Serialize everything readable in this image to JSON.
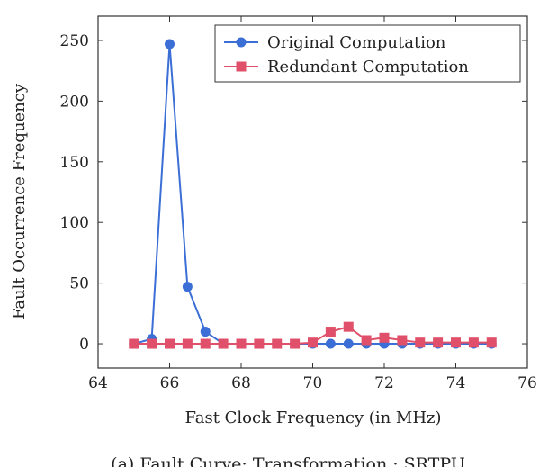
{
  "chart_data": {
    "type": "line",
    "xlabel": "Fast Clock Frequency (in MHz)",
    "ylabel": "Fault Occurrence Frequency",
    "xlim": [
      64,
      76
    ],
    "ylim": [
      -20,
      270
    ],
    "x_ticks": [
      64,
      66,
      68,
      70,
      72,
      74,
      76
    ],
    "y_ticks": [
      0,
      50,
      100,
      150,
      200,
      250
    ],
    "grid": false,
    "legend_position": "top-right",
    "series": [
      {
        "name": "Original Computation",
        "color": "#3b6fd6",
        "marker": "circle",
        "x": [
          65,
          65.5,
          66,
          66.5,
          67,
          67.5,
          68,
          68.5,
          69,
          69.5,
          70,
          70.5,
          71,
          71.5,
          72,
          72.5,
          73,
          73.5,
          74,
          74.5,
          75
        ],
        "y": [
          0,
          4,
          247,
          47,
          10,
          0,
          0,
          0,
          0,
          0,
          0,
          0,
          0,
          0,
          0,
          0,
          0,
          0,
          0,
          0,
          0
        ]
      },
      {
        "name": "Redundant Computation",
        "color": "#e0506a",
        "marker": "square",
        "x": [
          65,
          65.5,
          66,
          66.5,
          67,
          67.5,
          68,
          68.5,
          69,
          69.5,
          70,
          70.5,
          71,
          71.5,
          72,
          72.5,
          73,
          73.5,
          74,
          74.5,
          75
        ],
        "y": [
          0,
          0,
          0,
          0,
          0,
          0,
          0,
          0,
          0,
          0,
          1,
          10,
          14,
          3,
          5,
          3,
          1,
          1,
          1,
          1,
          1
        ]
      }
    ]
  },
  "caption": "(a) Fault Curve: Transformation : SRTPU"
}
